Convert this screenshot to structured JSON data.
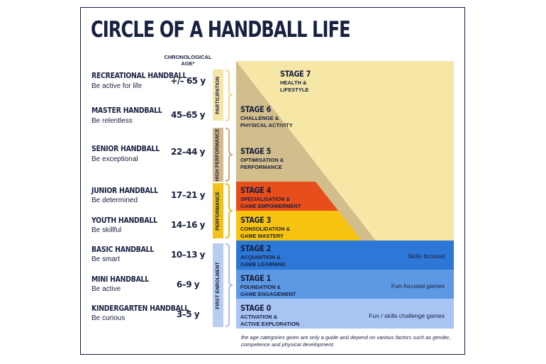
{
  "title": "CIRCLE OF A HANDBALL LIFE",
  "age_header": "CHRONOLOGICAL AGE*",
  "levels": [
    {
      "name": "RECREATIONAL HANDBALL",
      "motto": "Be active for life",
      "age": "+/– 65 y"
    },
    {
      "name": "MASTER HANDBALL",
      "motto": "Be relentless",
      "age": "45–65 y"
    },
    {
      "name": "SENIOR HANDBALL",
      "motto": "Be exceptional",
      "age": "22–44 y"
    },
    {
      "name": "JUNIOR HANDBALL",
      "motto": "Be determined",
      "age": "17–21 y"
    },
    {
      "name": "YOUTH HANDBALL",
      "motto": "Be skillful",
      "age": "14–16 y"
    },
    {
      "name": "BASIC HANDBALL",
      "motto": "Be smart",
      "age": "10–13 y"
    },
    {
      "name": "MINI HANDBALL",
      "motto": "Be active",
      "age": "6–9 y"
    },
    {
      "name": "KINDERGARTEN HANDBALL",
      "motto": "Be curious",
      "age": "3–5 y"
    }
  ],
  "phases": [
    {
      "label": "PARTICIPATION",
      "color": "#f5e6a8"
    },
    {
      "label": "HIGH PERFORMANCE",
      "color": "#d4b98a"
    },
    {
      "label": "PERFORMANCE",
      "color": "#f2c21b"
    },
    {
      "label": "FIRST ENROLMENT",
      "color": "#b8cdf0"
    }
  ],
  "stages": [
    {
      "num": "STAGE 7",
      "desc1": "HEALTH &",
      "desc2": "LIFESTYLE",
      "color": "#f7e7a6"
    },
    {
      "num": "STAGE 6",
      "desc1": "CHALLENGE &",
      "desc2": "PHYSICAL ACTIVITY",
      "color": "#d2bd8c"
    },
    {
      "num": "STAGE 5",
      "desc1": "OPTIMISATION &",
      "desc2": "PERFORMANCE",
      "color": "#d2bd8c"
    },
    {
      "num": "STAGE 4",
      "desc1": "SPECIALISATION &",
      "desc2": "GAME EMPOWERMENT",
      "color": "#e84e1b"
    },
    {
      "num": "STAGE 3",
      "desc1": "CONSOLIDATION &",
      "desc2": "GAME MASTERY",
      "color": "#f7c311"
    },
    {
      "num": "STAGE 2",
      "desc1": "ACQUISITION &",
      "desc2": "GAME LEARNING",
      "color": "#2d77d6",
      "focus": "Skills focused"
    },
    {
      "num": "STAGE 1",
      "desc1": "FOUNDATION &",
      "desc2": "GAME ENGAGEMENT",
      "color": "#5d98e4",
      "focus": "Fun-focused games"
    },
    {
      "num": "STAGE 0",
      "desc1": "ACTIVATION &",
      "desc2": "ACTIVE EXPLORATION",
      "color": "#a7c4f2",
      "focus": "Fun / skills challenge games"
    }
  ],
  "footnote": "the age categories given are only a guide and depend on various factors such as gender, competence and physical development."
}
